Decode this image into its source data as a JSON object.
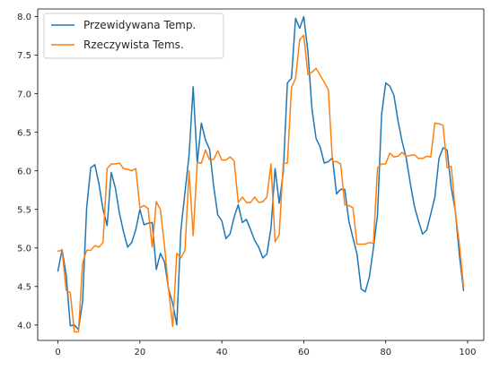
{
  "chart_data": {
    "type": "line",
    "title": "",
    "xlabel": "",
    "ylabel": "",
    "xlim": [
      -4.95,
      103.95
    ],
    "ylim": [
      3.8,
      8.1
    ],
    "xticks": [
      0,
      20,
      40,
      60,
      80,
      100
    ],
    "xtick_labels": [
      "0",
      "20",
      "40",
      "60",
      "80",
      "100"
    ],
    "yticks": [
      4.0,
      4.5,
      5.0,
      5.5,
      6.0,
      6.5,
      7.0,
      7.5,
      8.0
    ],
    "ytick_labels": [
      "4.0",
      "4.5",
      "5.0",
      "5.5",
      "6.0",
      "6.5",
      "7.0",
      "7.5",
      "8.0"
    ],
    "legend_position": "top-left",
    "grid": false,
    "x": [
      0,
      1,
      2,
      3,
      4,
      5,
      6,
      7,
      8,
      9,
      10,
      11,
      12,
      13,
      14,
      15,
      16,
      17,
      18,
      19,
      20,
      21,
      22,
      23,
      24,
      25,
      26,
      27,
      28,
      29,
      30,
      31,
      32,
      33,
      34,
      35,
      36,
      37,
      38,
      39,
      40,
      41,
      42,
      43,
      44,
      45,
      46,
      47,
      48,
      49,
      50,
      51,
      52,
      53,
      54,
      55,
      56,
      57,
      58,
      59,
      60,
      61,
      62,
      63,
      64,
      65,
      66,
      67,
      68,
      69,
      70,
      71,
      72,
      73,
      74,
      75,
      76,
      77,
      78,
      79,
      80,
      81,
      82,
      83,
      84,
      85,
      86,
      87,
      88,
      89,
      90,
      91,
      92,
      93,
      94,
      95,
      96,
      97,
      98,
      99
    ],
    "series": [
      {
        "name": "Przewidywana Temp.",
        "color": "#1f77b4",
        "values": [
          4.7,
          4.98,
          4.65,
          3.99,
          4.0,
          3.94,
          4.3,
          5.52,
          6.04,
          6.08,
          5.83,
          5.5,
          5.29,
          5.98,
          5.78,
          5.45,
          5.21,
          5.01,
          5.07,
          5.24,
          5.5,
          5.3,
          5.32,
          5.33,
          4.72,
          4.93,
          4.82,
          4.47,
          4.28,
          4.0,
          5.23,
          5.72,
          6.2,
          7.09,
          6.1,
          6.62,
          6.4,
          6.28,
          5.8,
          5.43,
          5.35,
          5.12,
          5.18,
          5.4,
          5.56,
          5.33,
          5.37,
          5.24,
          5.1,
          5.01,
          4.87,
          4.92,
          5.26,
          6.03,
          5.58,
          5.98,
          7.14,
          7.2,
          7.98,
          7.85,
          8.0,
          7.55,
          6.8,
          6.42,
          6.31,
          6.1,
          6.12,
          6.17,
          5.7,
          5.76,
          5.76,
          5.35,
          5.13,
          4.92,
          4.47,
          4.43,
          4.62,
          5.0,
          5.43,
          6.73,
          7.14,
          7.1,
          6.98,
          6.65,
          6.38,
          6.17,
          5.84,
          5.54,
          5.35,
          5.18,
          5.23,
          5.44,
          5.66,
          6.16,
          6.3,
          6.27,
          5.78,
          5.48,
          4.9,
          4.45
        ]
      },
      {
        "name": "Rzeczywista Tems.",
        "color": "#ff7f0e",
        "values": [
          4.96,
          4.97,
          4.45,
          4.42,
          3.91,
          3.91,
          4.8,
          4.97,
          4.97,
          5.03,
          5.01,
          5.07,
          6.03,
          6.09,
          6.09,
          6.1,
          6.03,
          6.02,
          6.0,
          6.03,
          5.52,
          5.55,
          5.51,
          5.01,
          5.6,
          5.5,
          5.03,
          4.46,
          3.98,
          4.93,
          4.87,
          4.97,
          6.0,
          5.16,
          6.11,
          6.1,
          6.27,
          6.14,
          6.15,
          6.26,
          6.14,
          6.14,
          6.18,
          6.13,
          5.59,
          5.66,
          5.59,
          5.59,
          5.66,
          5.59,
          5.6,
          5.66,
          6.09,
          5.08,
          5.17,
          6.1,
          6.1,
          7.08,
          7.2,
          7.7,
          7.76,
          7.25,
          7.28,
          7.33,
          7.24,
          7.15,
          7.05,
          6.12,
          6.12,
          6.09,
          5.56,
          5.55,
          5.52,
          5.05,
          5.05,
          5.05,
          5.07,
          5.06,
          6.04,
          6.09,
          6.09,
          6.23,
          6.18,
          6.19,
          6.24,
          6.19,
          6.2,
          6.21,
          6.16,
          6.16,
          6.19,
          6.18,
          6.62,
          6.61,
          6.59,
          6.04,
          6.06,
          5.47,
          5.04,
          4.5
        ]
      }
    ]
  }
}
